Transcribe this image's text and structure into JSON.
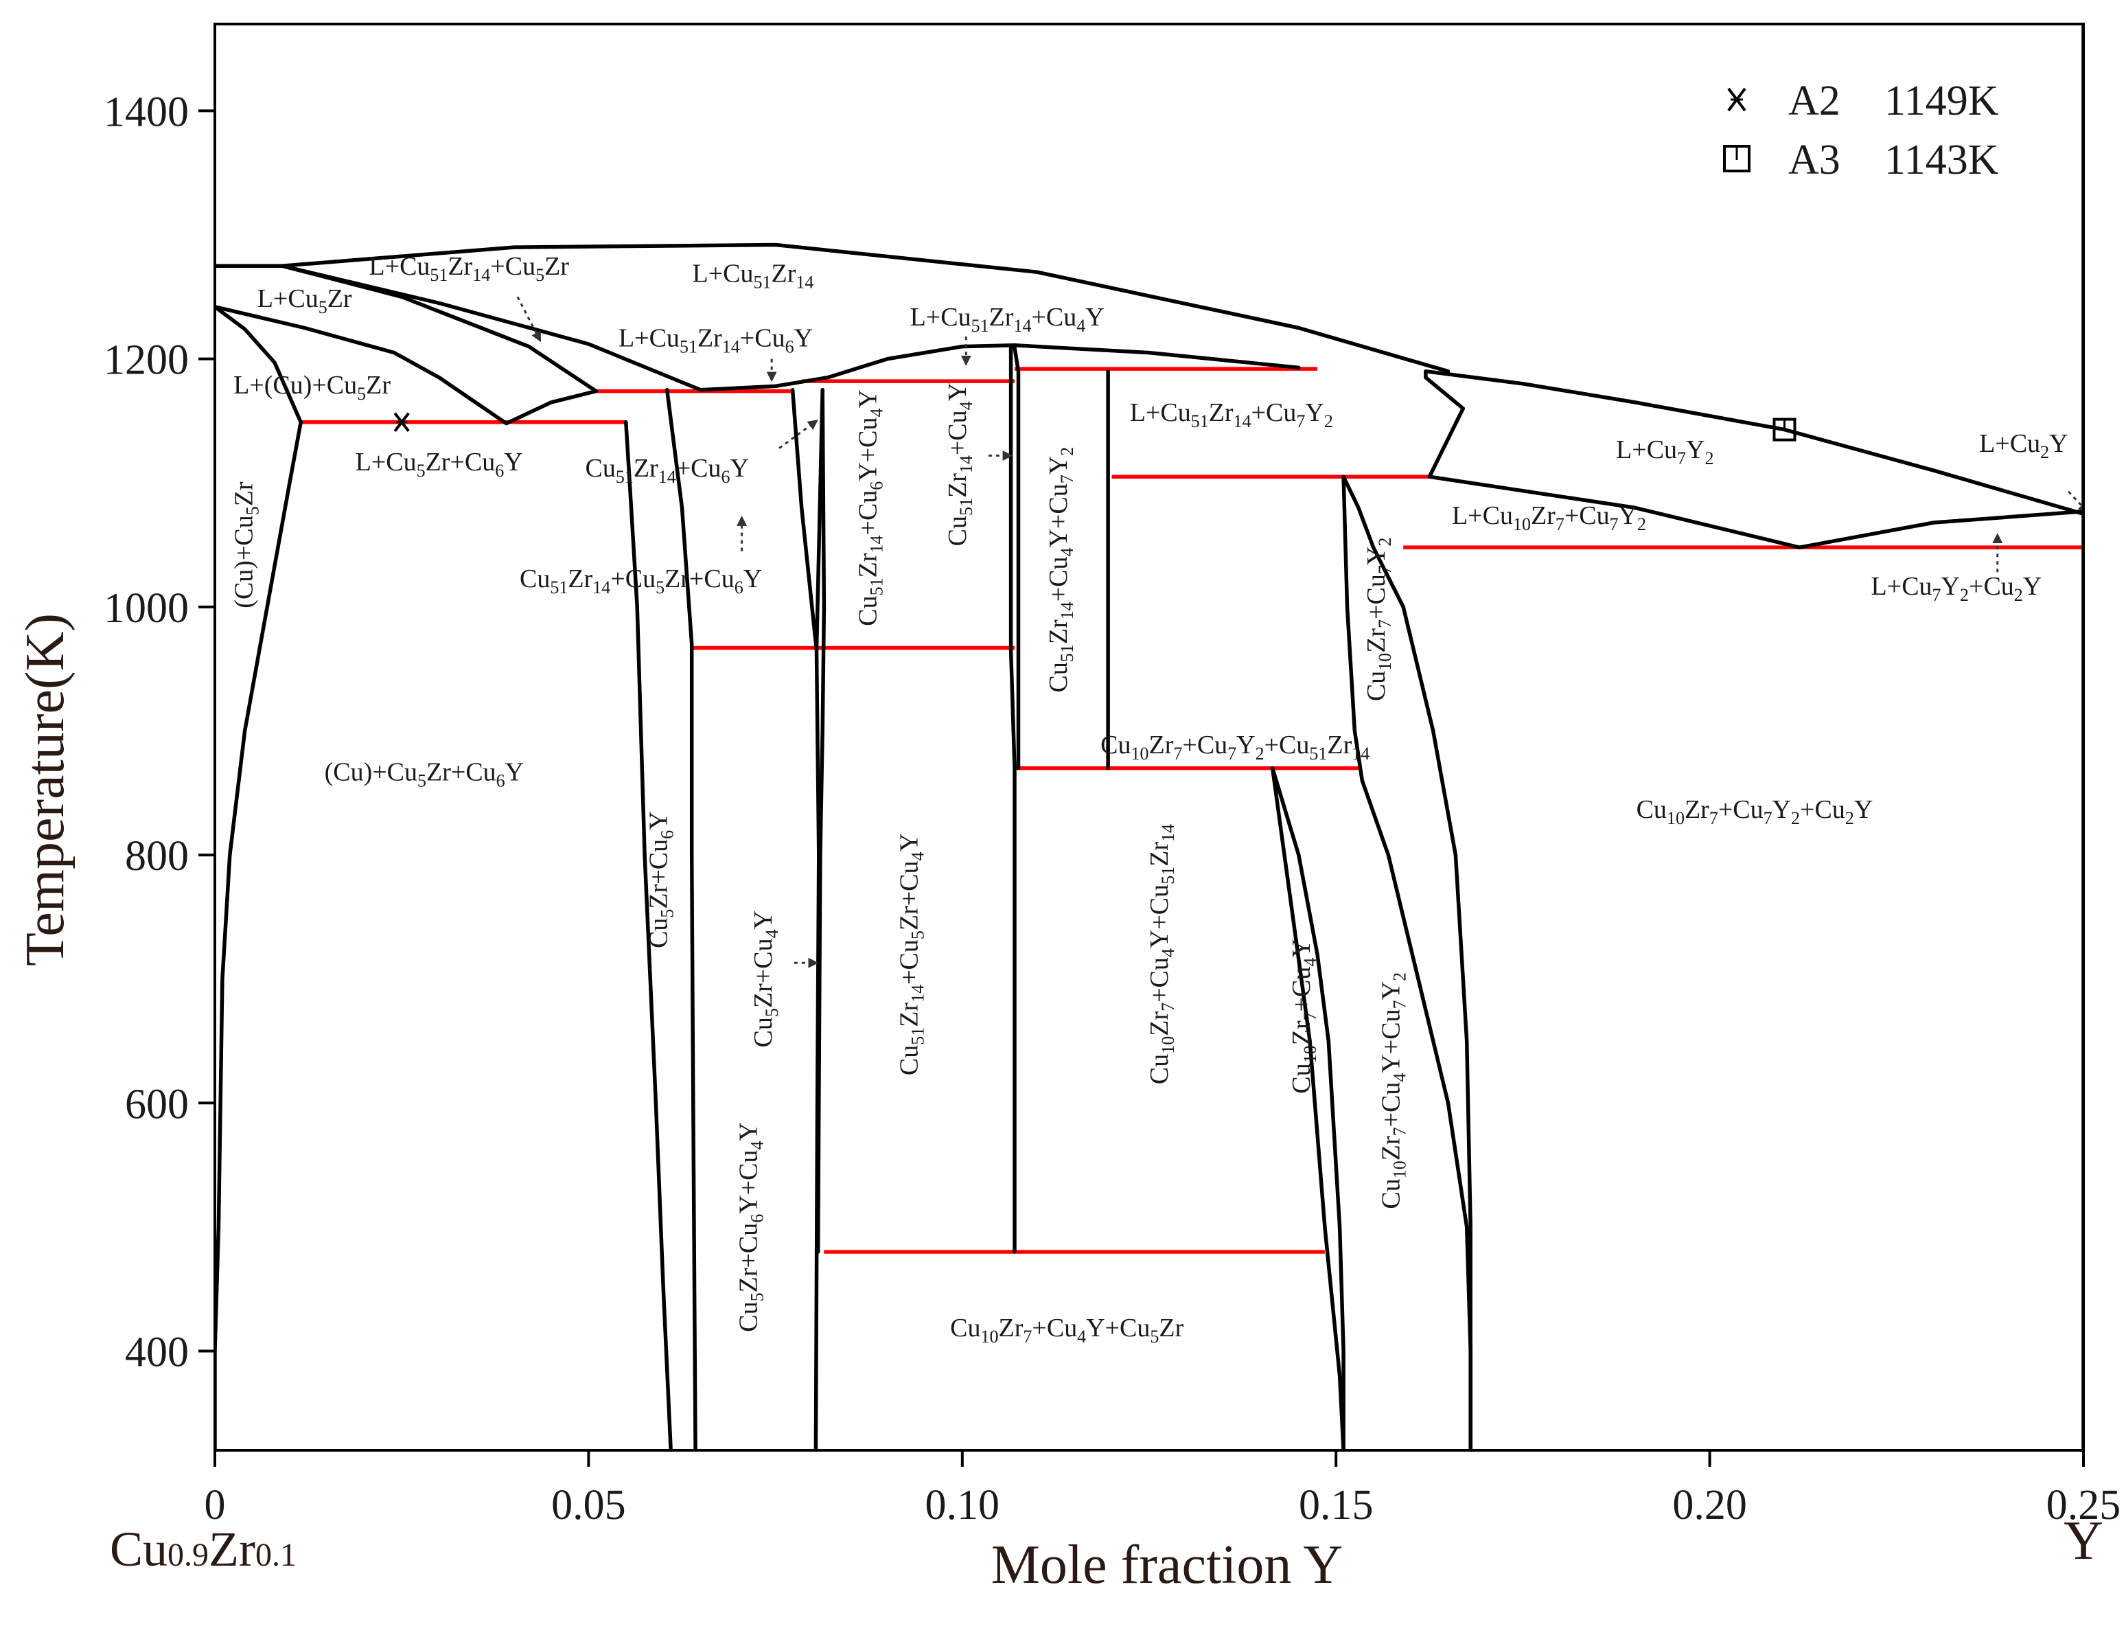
{
  "chart_data": {
    "type": "phase-diagram",
    "xlabel": "Mole fraction Y",
    "ylabel": "Temperature(K)",
    "x_left_label": "Cu0.9Zr0.1",
    "x_right_label": "Y",
    "xlim": [
      0,
      0.25
    ],
    "ylim": [
      320,
      1470
    ],
    "xticks": [
      {
        "value": 0,
        "label": "0"
      },
      {
        "value": 0.05,
        "label": "0.05"
      },
      {
        "value": 0.1,
        "label": "0.10"
      },
      {
        "value": 0.15,
        "label": "0.15"
      },
      {
        "value": 0.2,
        "label": "0.20"
      },
      {
        "value": 0.25,
        "label": "0.25"
      }
    ],
    "yticks": [
      {
        "value": 400,
        "label": "400"
      },
      {
        "value": 600,
        "label": "600"
      },
      {
        "value": 800,
        "label": "800"
      },
      {
        "value": 1000,
        "label": "1000"
      },
      {
        "value": 1200,
        "label": "1200"
      },
      {
        "value": 1400,
        "label": "1400"
      }
    ],
    "legend": {
      "position": "top-right",
      "entries": [
        {
          "marker": "x",
          "name": "A2",
          "temperature": "1149K"
        },
        {
          "marker": "square",
          "name": "A3",
          "temperature": "1143K"
        }
      ]
    },
    "data_points": [
      {
        "name": "A2",
        "marker": "x",
        "x": 0.025,
        "y": 1149
      },
      {
        "name": "A3",
        "marker": "square",
        "x": 0.21,
        "y": 1143
      }
    ],
    "boundaries": [
      {
        "points": [
          [
            0,
            1275
          ],
          [
            0.009,
            1275
          ],
          [
            0.04,
            1290
          ],
          [
            0.075,
            1292
          ],
          [
            0.11,
            1270
          ],
          [
            0.145,
            1225
          ],
          [
            0.165,
            1190
          ]
        ]
      },
      {
        "points": [
          [
            0,
            1275
          ],
          [
            0.009,
            1275
          ],
          [
            0.03,
            1245
          ],
          [
            0.05,
            1212
          ],
          [
            0.065,
            1175
          ]
        ]
      },
      {
        "points": [
          [
            0.009,
            1275
          ],
          [
            0.025,
            1250
          ],
          [
            0.042,
            1210
          ],
          [
            0.051,
            1174
          ]
        ]
      },
      {
        "points": [
          [
            0,
            1242
          ],
          [
            0.012,
            1225
          ],
          [
            0.024,
            1205
          ],
          [
            0.03,
            1185
          ],
          [
            0.039,
            1148
          ]
        ]
      },
      {
        "points": [
          [
            0,
            1242
          ],
          [
            0.004,
            1224
          ],
          [
            0.008,
            1197
          ],
          [
            0.0115,
            1149
          ]
        ]
      },
      {
        "points": [
          [
            0.039,
            1148
          ],
          [
            0.045,
            1165
          ],
          [
            0.051,
            1174
          ]
        ]
      },
      {
        "points": [
          [
            0.065,
            1175
          ],
          [
            0.075,
            1178
          ],
          [
            0.082,
            1185
          ],
          [
            0.09,
            1200
          ],
          [
            0.1,
            1210
          ],
          [
            0.107,
            1211
          ],
          [
            0.125,
            1205
          ],
          [
            0.145,
            1193
          ]
        ]
      },
      {
        "points": [
          [
            0.0115,
            1149
          ],
          [
            0.01,
            1100
          ],
          [
            0.007,
            1000
          ],
          [
            0.004,
            900
          ],
          [
            0.002,
            800
          ],
          [
            0.001,
            700
          ],
          [
            0.0005,
            500
          ],
          [
            0,
            400
          ],
          [
            0,
            320
          ]
        ]
      },
      {
        "points": [
          [
            0.055,
            1149
          ],
          [
            0.0555,
            1100
          ],
          [
            0.0565,
            1000
          ],
          [
            0.0575,
            800
          ],
          [
            0.059,
            600
          ],
          [
            0.06,
            450
          ],
          [
            0.061,
            320
          ]
        ]
      },
      {
        "points": [
          [
            0.0605,
            1175
          ],
          [
            0.0625,
            1080
          ],
          [
            0.0638,
            970
          ],
          [
            0.0638,
            800
          ],
          [
            0.064,
            600
          ],
          [
            0.0643,
            320
          ]
        ]
      },
      {
        "points": [
          [
            0.0773,
            1175
          ],
          [
            0.0785,
            1080
          ],
          [
            0.0805,
            965
          ],
          [
            0.0813,
            1175
          ]
        ]
      },
      {
        "points": [
          [
            0.0813,
            1175
          ],
          [
            0.0815,
            1000
          ],
          [
            0.0813,
            900
          ],
          [
            0.081,
            800
          ],
          [
            0.0808,
            600
          ],
          [
            0.0807,
            480
          ]
        ]
      },
      {
        "points": [
          [
            0.0805,
            965
          ],
          [
            0.0808,
            800
          ],
          [
            0.0806,
            600
          ],
          [
            0.0804,
            320
          ]
        ]
      },
      {
        "points": [
          [
            0.1065,
            1209
          ],
          [
            0.1065,
            965
          ],
          [
            0.107,
            870
          ],
          [
            0.107,
            480
          ]
        ]
      },
      {
        "points": [
          [
            0.107,
            1209
          ],
          [
            0.1075,
            1190
          ],
          [
            0.1075,
            870
          ]
        ]
      },
      {
        "points": [
          [
            0.1195,
            1190
          ],
          [
            0.1195,
            1105
          ],
          [
            0.1195,
            870
          ]
        ]
      },
      {
        "points": [
          [
            0.162,
            1190
          ],
          [
            0.162,
            1185
          ],
          [
            0.167,
            1160
          ],
          [
            0.1625,
            1105
          ]
        ]
      },
      {
        "points": [
          [
            0.151,
            1105
          ],
          [
            0.153,
            1080
          ],
          [
            0.155,
            1048
          ]
        ]
      },
      {
        "points": [
          [
            0.151,
            1105
          ],
          [
            0.1515,
            1000
          ],
          [
            0.1525,
            900
          ],
          [
            0.1535,
            860
          ],
          [
            0.157,
            800
          ],
          [
            0.161,
            700
          ],
          [
            0.165,
            600
          ],
          [
            0.1675,
            500
          ],
          [
            0.168,
            400
          ],
          [
            0.168,
            320
          ]
        ]
      },
      {
        "points": [
          [
            0.155,
            1048
          ],
          [
            0.159,
            1000
          ],
          [
            0.163,
            900
          ],
          [
            0.166,
            800
          ],
          [
            0.1675,
            650
          ],
          [
            0.168,
            500
          ],
          [
            0.168,
            320
          ]
        ]
      },
      {
        "points": [
          [
            0.1415,
            870
          ],
          [
            0.145,
            800
          ],
          [
            0.1475,
            720
          ],
          [
            0.149,
            650
          ],
          [
            0.1505,
            500
          ],
          [
            0.151,
            400
          ],
          [
            0.151,
            320
          ]
        ]
      },
      {
        "points": [
          [
            0.1415,
            870
          ],
          [
            0.144,
            760
          ],
          [
            0.1465,
            650
          ],
          [
            0.1485,
            500
          ],
          [
            0.1505,
            380
          ],
          [
            0.151,
            320
          ]
        ]
      },
      {
        "points": [
          [
            0.162,
            1190
          ],
          [
            0.175,
            1180
          ],
          [
            0.19,
            1165
          ],
          [
            0.21,
            1143
          ],
          [
            0.23,
            1110
          ],
          [
            0.25,
            1075
          ]
        ]
      },
      {
        "points": [
          [
            0.1625,
            1105
          ],
          [
            0.19,
            1080
          ],
          [
            0.212,
            1048
          ]
        ]
      },
      {
        "points": [
          [
            0.212,
            1048
          ],
          [
            0.23,
            1068
          ],
          [
            0.25,
            1077
          ]
        ]
      },
      {
        "points": [
          [
            0.25,
            1470
          ],
          [
            0.25,
            320
          ]
        ]
      }
    ],
    "invariant_lines": [
      {
        "x1": 0.0115,
        "x2": 0.055,
        "y": 1149
      },
      {
        "x1": 0.051,
        "x2": 0.0773,
        "y": 1174
      },
      {
        "x1": 0.0785,
        "x2": 0.107,
        "y": 1182
      },
      {
        "x1": 0.107,
        "x2": 0.1475,
        "y": 1192
      },
      {
        "x1": 0.12,
        "x2": 0.1625,
        "y": 1105
      },
      {
        "x1": 0.159,
        "x2": 0.25,
        "y": 1048
      },
      {
        "x1": 0.0638,
        "x2": 0.107,
        "y": 967
      },
      {
        "x1": 0.107,
        "x2": 0.153,
        "y": 870
      },
      {
        "x1": 0.0815,
        "x2": 0.1485,
        "y": 480
      }
    ],
    "regions": [
      {
        "text": "L+Cu5Zr",
        "x": 0.012,
        "y": 1242
      },
      {
        "text": "L+Cu51Zr14+Cu5Zr",
        "x": 0.034,
        "y": 1268
      },
      {
        "text": "L+Cu51Zr14",
        "x": 0.072,
        "y": 1262
      },
      {
        "text": "L+Cu51Zr14+Cu6Y",
        "x": 0.067,
        "y": 1210
      },
      {
        "text": "L+Cu51Zr14+Cu4Y",
        "x": 0.106,
        "y": 1227
      },
      {
        "text": "L+(Cu)+Cu5Zr",
        "x": 0.013,
        "y": 1172
      },
      {
        "text": "L+Cu5Zr+Cu6Y",
        "x": 0.03,
        "y": 1110
      },
      {
        "text": "Cu51Zr14+Cu6Y",
        "x": 0.0605,
        "y": 1105
      },
      {
        "text": "Cu51Zr14+Cu5Zr+Cu6Y",
        "x": 0.057,
        "y": 1016
      },
      {
        "text": "(Cu)+Cu5Zr",
        "x": 0.005,
        "y": 1050,
        "rotate": -90
      },
      {
        "text": "(Cu)+Cu5Zr+Cu6Y",
        "x": 0.028,
        "y": 860
      },
      {
        "text": "L+Cu51Zr14+Cu7Y2",
        "x": 0.136,
        "y": 1150
      },
      {
        "text": "L+Cu7Y2",
        "x": 0.194,
        "y": 1120
      },
      {
        "text": "L+Cu2Y",
        "x": 0.242,
        "y": 1125
      },
      {
        "text": "L+Cu10Zr7+Cu7Y2",
        "x": 0.1785,
        "y": 1067
      },
      {
        "text": "L+Cu7Y2+Cu2Y",
        "x": 0.233,
        "y": 1010
      },
      {
        "text": "Cu10Zr7+Cu7Y2+Cu51Zr14",
        "x": 0.1365,
        "y": 882
      },
      {
        "text": "Cu10Zr7+Cu7Y2+Cu2Y",
        "x": 0.206,
        "y": 830
      },
      {
        "text": "Cu10Zr7+Cu4Y+Cu5Zr",
        "x": 0.114,
        "y": 412
      },
      {
        "text": "Cu5Zr+Cu6Y",
        "x": 0.0605,
        "y": 780,
        "rotate": -90
      },
      {
        "text": "Cu5Zr+Cu4Y",
        "x": 0.0745,
        "y": 700,
        "rotate": -90
      },
      {
        "text": "Cu5Zr+Cu6Y+Cu4Y",
        "x": 0.0725,
        "y": 500,
        "rotate": -90
      },
      {
        "text": "Cu51Zr14+Cu5Zr+Cu4Y",
        "x": 0.094,
        "y": 720,
        "rotate": -90
      },
      {
        "text": "Cu51Zr14+Cu6Y+Cu4Y",
        "x": 0.0885,
        "y": 1080,
        "rotate": -90
      },
      {
        "text": "Cu51Zr14+Cu4Y",
        "x": 0.1005,
        "y": 1115,
        "rotate": -90
      },
      {
        "text": "Cu51Zr14+Cu4Y+Cu7Y2",
        "x": 0.114,
        "y": 1030,
        "rotate": -90
      },
      {
        "text": "Cu10Zr7+Cu4Y+Cu51Zr14",
        "x": 0.1275,
        "y": 720,
        "rotate": -90
      },
      {
        "text": "Cu10Zr7+Cu4Y",
        "x": 0.1465,
        "y": 670,
        "rotate": -90
      },
      {
        "text": "Cu10Zr7+Cu4Y+Cu7Y2",
        "x": 0.1585,
        "y": 610,
        "rotate": -90
      },
      {
        "text": "Cu10Zr7+Cu7Y2",
        "x": 0.1565,
        "y": 990,
        "rotate": -90
      }
    ],
    "pointers": [
      {
        "from": [
          0.0405,
          1250
        ],
        "to": [
          0.0435,
          1215
        ]
      },
      {
        "from": [
          0.0745,
          1200
        ],
        "to": [
          0.0745,
          1183
        ]
      },
      {
        "from": [
          0.1005,
          1218
        ],
        "to": [
          0.1005,
          1196
        ]
      },
      {
        "from": [
          0.0755,
          1128
        ],
        "to": [
          0.0805,
          1150
        ]
      },
      {
        "from": [
          0.0705,
          1045
        ],
        "to": [
          0.0705,
          1072
        ]
      },
      {
        "from": [
          0.1035,
          1122
        ],
        "to": [
          0.1065,
          1122
        ]
      },
      {
        "from": [
          0.0775,
          713
        ],
        "to": [
          0.0805,
          713
        ]
      },
      {
        "from": [
          0.2385,
          1028
        ],
        "to": [
          0.2385,
          1058
        ]
      },
      {
        "from": [
          0.248,
          1093
        ],
        "to": [
          0.2505,
          1077
        ]
      }
    ]
  }
}
